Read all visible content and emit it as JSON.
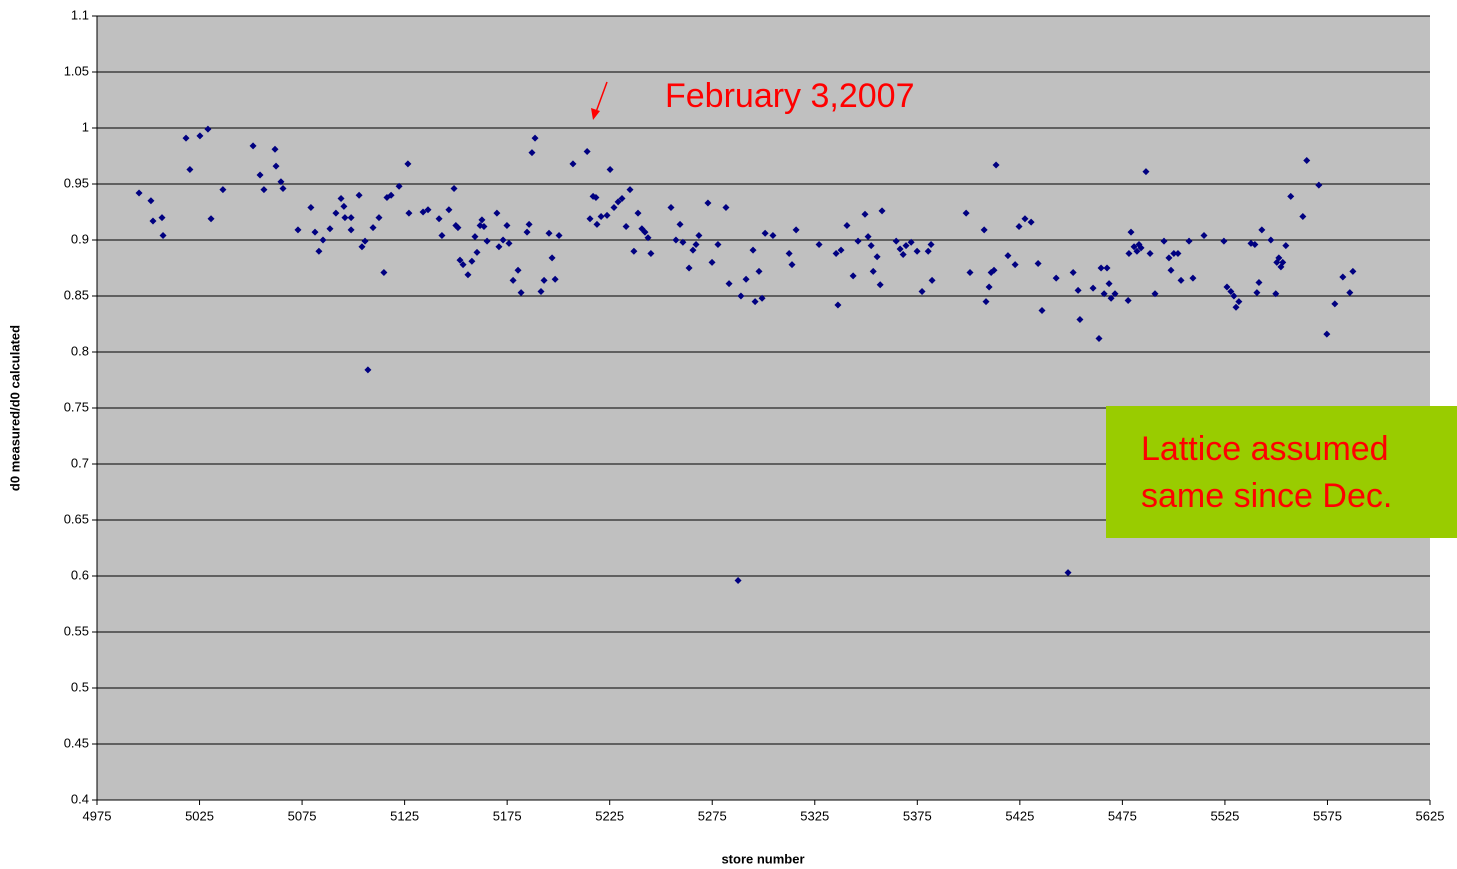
{
  "chart_data": {
    "type": "scatter",
    "xlabel": "store number",
    "ylabel": "d0 measured/d0 calculated",
    "xlim": [
      4975,
      5625
    ],
    "xticks": [
      4975,
      5025,
      5075,
      5125,
      5175,
      5225,
      5275,
      5325,
      5375,
      5425,
      5475,
      5525,
      5575,
      5625
    ],
    "ylim": [
      0.4,
      1.1
    ],
    "yticks": [
      0.4,
      0.45,
      0.5,
      0.55,
      0.6,
      0.65,
      0.7,
      0.75,
      0.8,
      0.85,
      0.9,
      0.95,
      1,
      1.05,
      1.1
    ],
    "grid": true,
    "series": [
      {
        "color": "#000080",
        "x": [
          4995.5,
          5001.3,
          5002.3,
          5006.7,
          5007.2,
          5018.4,
          5020.3,
          5025.2,
          5029.1,
          5030.6,
          5036.4,
          5051.1,
          5054.5,
          5056.4,
          5061.8,
          5062.3,
          5064.7,
          5065.7,
          5073.0,
          5079.3,
          5081.3,
          5083.2,
          5085.2,
          5088.6,
          5091.5,
          5094.0,
          5095.4,
          5095.9,
          5098.9,
          5098.9,
          5102.8,
          5104.2,
          5105.7,
          5107.1,
          5109.6,
          5112.5,
          5114.9,
          5116.4,
          5118.4,
          5122.3,
          5126.6,
          5127.1,
          5134.0,
          5136.4,
          5141.8,
          5143.2,
          5146.6,
          5149.1,
          5150.0,
          5151.0,
          5152.0,
          5153.5,
          5155.9,
          5157.8,
          5159.3,
          5160.3,
          5161.8,
          5162.7,
          5163.7,
          5165.2,
          5170.0,
          5171.0,
          5173.0,
          5174.9,
          5175.9,
          5177.9,
          5180.3,
          5181.8,
          5184.7,
          5185.7,
          5187.1,
          5188.6,
          5191.5,
          5193.0,
          5195.4,
          5196.9,
          5198.4,
          5200.3,
          5207.1,
          5214.0,
          5215.4,
          5216.9,
          5218.3,
          5218.8,
          5220.8,
          5223.7,
          5225.2,
          5227.1,
          5229.1,
          5231.0,
          5233.0,
          5234.9,
          5236.8,
          5238.8,
          5240.7,
          5242.2,
          5243.7,
          5245.1,
          5254.9,
          5257.3,
          5259.3,
          5260.7,
          5263.7,
          5265.6,
          5267.1,
          5268.5,
          5272.9,
          5274.9,
          5277.8,
          5281.7,
          5283.2,
          5287.6,
          5289.0,
          5291.5,
          5294.9,
          5295.9,
          5297.8,
          5299.3,
          5300.8,
          5304.6,
          5312.5,
          5313.9,
          5315.9,
          5327.1,
          5336.3,
          5335.4,
          5337.8,
          5340.7,
          5343.7,
          5346.1,
          5349.5,
          5351.0,
          5352.5,
          5353.5,
          5355.4,
          5356.9,
          5357.8,
          5364.7,
          5366.6,
          5368.1,
          5369.5,
          5372.0,
          5374.9,
          5377.3,
          5380.3,
          5381.7,
          5382.2,
          5398.8,
          5400.7,
          5407.6,
          5408.5,
          5410.0,
          5411.0,
          5412.4,
          5413.4,
          5419.2,
          5422.7,
          5424.6,
          5427.5,
          5430.5,
          5433.9,
          5435.8,
          5442.7,
          5448.5,
          5451.0,
          5453.4,
          5454.3,
          5460.7,
          5463.6,
          5464.6,
          5466.1,
          5467.5,
          5468.5,
          5469.5,
          5471.4,
          5477.8,
          5478.2,
          5479.2,
          5480.7,
          5482.1,
          5483.1,
          5484.1,
          5486.5,
          5488.5,
          5490.9,
          5495.3,
          5497.7,
          5498.7,
          5500.1,
          5502.1,
          5503.6,
          5507.5,
          5509.4,
          5514.8,
          5524.5,
          5526.0,
          5527.9,
          5529.4,
          5530.4,
          5531.8,
          5537.7,
          5539.6,
          5540.6,
          5541.6,
          5543.0,
          5547.4,
          5549.8,
          5550.3,
          5551.3,
          5552.3,
          5553.2,
          5554.7,
          5557.1,
          5563.0,
          5564.9,
          5570.8,
          5574.7,
          5578.6,
          5582.5,
          5585.9,
          5587.4
        ],
        "values": [
          0.942,
          0.935,
          0.917,
          0.92,
          0.904,
          0.991,
          0.963,
          0.993,
          0.999,
          0.919,
          0.945,
          0.984,
          0.958,
          0.945,
          0.981,
          0.966,
          0.952,
          0.946,
          0.909,
          0.929,
          0.907,
          0.89,
          0.9,
          0.91,
          0.924,
          0.937,
          0.93,
          0.92,
          0.92,
          0.909,
          0.94,
          0.894,
          0.899,
          0.784,
          0.911,
          0.92,
          0.871,
          0.938,
          0.94,
          0.948,
          0.968,
          0.924,
          0.925,
          0.927,
          0.919,
          0.904,
          0.927,
          0.946,
          0.913,
          0.911,
          0.882,
          0.878,
          0.869,
          0.881,
          0.903,
          0.889,
          0.913,
          0.918,
          0.912,
          0.899,
          0.924,
          0.894,
          0.9,
          0.913,
          0.897,
          0.864,
          0.873,
          0.853,
          0.907,
          0.914,
          0.978,
          0.991,
          0.854,
          0.864,
          0.906,
          0.884,
          0.865,
          0.904,
          0.968,
          0.979,
          0.919,
          0.939,
          0.938,
          0.914,
          0.921,
          0.922,
          0.963,
          0.929,
          0.934,
          0.937,
          0.912,
          0.945,
          0.89,
          0.924,
          0.91,
          0.907,
          0.902,
          0.888,
          0.929,
          0.9,
          0.914,
          0.898,
          0.875,
          0.891,
          0.896,
          0.904,
          0.933,
          0.88,
          0.896,
          0.929,
          0.861,
          0.596,
          0.85,
          0.865,
          0.891,
          0.845,
          0.872,
          0.848,
          0.906,
          0.904,
          0.888,
          0.878,
          0.909,
          0.896,
          0.842,
          0.888,
          0.891,
          0.913,
          0.868,
          0.899,
          0.923,
          0.903,
          0.895,
          0.872,
          0.885,
          0.86,
          0.926,
          0.899,
          0.892,
          0.887,
          0.895,
          0.898,
          0.89,
          0.854,
          0.89,
          0.896,
          0.864,
          0.924,
          0.871,
          0.909,
          0.845,
          0.858,
          0.871,
          0.873,
          0.967,
          0.886,
          0.878,
          0.912,
          0.919,
          0.916,
          0.879,
          0.837,
          0.866,
          0.603,
          0.871,
          0.855,
          0.829,
          0.857,
          0.812,
          0.875,
          0.852,
          0.875,
          0.861,
          0.848,
          0.852,
          0.846,
          0.888,
          0.907,
          0.894,
          0.89,
          0.896,
          0.893,
          0.961,
          0.888,
          0.852,
          0.899,
          0.884,
          0.873,
          0.888,
          0.888,
          0.864,
          0.899,
          0.866,
          0.904,
          0.899,
          0.858,
          0.854,
          0.85,
          0.84,
          0.845,
          0.897,
          0.896,
          0.853,
          0.862,
          0.909,
          0.9,
          0.852,
          0.88,
          0.884,
          0.876,
          0.88,
          0.895,
          0.939,
          0.921,
          0.971,
          0.949,
          0.816,
          0.843,
          0.867,
          0.853,
          0.872
        ]
      }
    ],
    "annotations": [
      {
        "text": "February 3,2007"
      },
      {
        "text": [
          "Lattice assumed",
          "same since Dec."
        ]
      }
    ]
  }
}
